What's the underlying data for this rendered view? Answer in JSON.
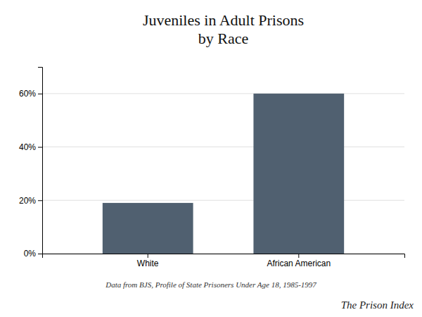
{
  "chart_data": {
    "type": "bar",
    "title": "Juveniles in Adult Prisons\nby Race",
    "categories": [
      "White",
      "African American"
    ],
    "values": [
      0.19,
      0.6
    ],
    "color": "#506070",
    "ylim": [
      0,
      0.7
    ],
    "yticks": [
      {
        "value": 0.0,
        "label": "0%"
      },
      {
        "value": 0.2,
        "label": "20%"
      },
      {
        "value": 0.4,
        "label": "40%"
      },
      {
        "value": 0.6,
        "label": "60%"
      }
    ],
    "grid": true,
    "annotations": [
      "Data from BJS, Profile of State Prisoners Under Age 18, 1985-1997",
      "The Prison Index"
    ]
  }
}
